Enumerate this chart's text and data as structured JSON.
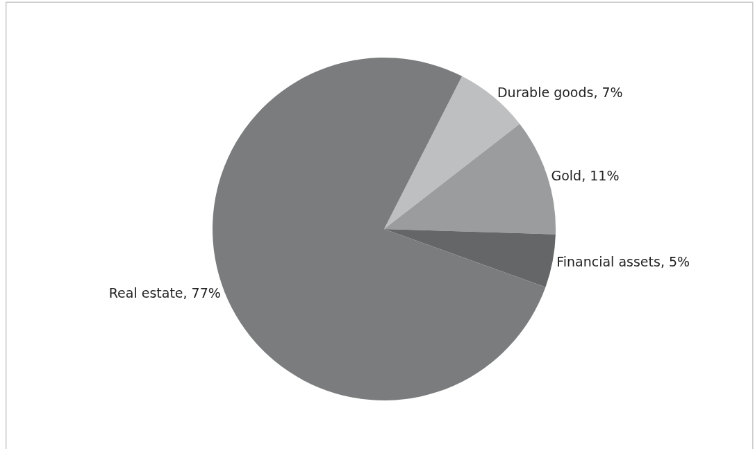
{
  "chart_data": {
    "type": "pie",
    "categories": [
      "Durable goods",
      "Gold",
      "Financial assets",
      "Real estate"
    ],
    "values": [
      7,
      11,
      5,
      77
    ],
    "value_labels": [
      "7%",
      "11%",
      "5%",
      "77%"
    ],
    "colors": [
      "#bdbfc1",
      "#9a9c9e",
      "#646667",
      "#7a7c7d"
    ],
    "legend": false
  }
}
